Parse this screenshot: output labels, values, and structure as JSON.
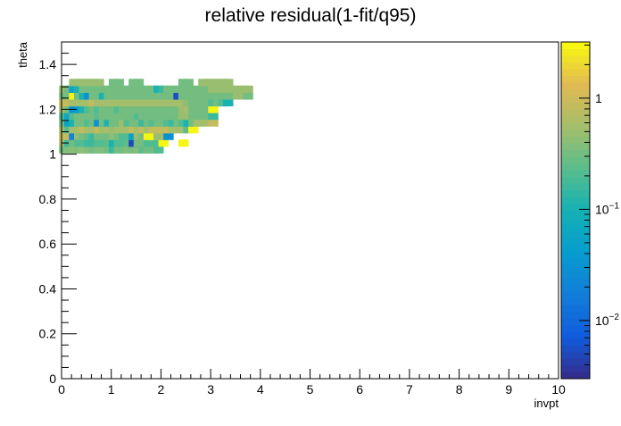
{
  "chart_data": {
    "type": "heatmap",
    "title": "relative residual(1-fit/q95)",
    "xlabel": "invpt",
    "ylabel": "theta",
    "xlim": [
      0,
      10
    ],
    "ylim": [
      0,
      1.5
    ],
    "x_ticks": [
      "0",
      "1",
      "2",
      "3",
      "4",
      "5",
      "6",
      "7",
      "8",
      "9",
      "10"
    ],
    "y_ticks": [
      "0",
      "0.2",
      "0.4",
      "0.6",
      "0.8",
      "1",
      "1.2",
      "1.4"
    ],
    "z_scale": "log",
    "zlim": [
      0.003,
      3.2
    ],
    "colorbar_ticks": [
      {
        "value": 1,
        "label": "1"
      },
      {
        "value": 0.1,
        "label": "10",
        "exp": "−1"
      },
      {
        "value": 0.01,
        "label": "10",
        "exp": "−2"
      }
    ],
    "bin_width_x": 0.2,
    "bin_height_y": 0.0314,
    "bins_x0": 0,
    "bins_y0": 0.9895,
    "grid": [
      "00000000000000000000000000000000000000000000000000",
      "00060606060600000000000000000000000000000000000000",
      "62323334225540000000000000000000000000000000000000",
      "63222222112322440000000000000000000000000000000000",
      "66633233333333554000000000000000000000000000000000",
      "63522343355334464000000000000000000000000000000000",
      "75231114434453533000000000000000000000000000000000",
      "55223224444422456000000000000000000000000000000000",
      "54744445444353540000000000000000000000000000000000",
      "00000000000000000000000000000000000000000000000000"
    ],
    "values_note": "",
    "cells": [
      [
        0.05,
        1.02,
        0.3
      ],
      [
        0.15,
        1.02,
        0.35
      ],
      [
        0.25,
        1.02,
        0.4
      ],
      [
        0.35,
        1.02,
        0.35
      ],
      [
        0.45,
        1.02,
        0.4
      ],
      [
        0.55,
        1.02,
        0.35
      ],
      [
        0.65,
        1.02,
        0.3
      ],
      [
        0.75,
        1.02,
        0.35
      ],
      [
        0.85,
        1.02,
        0.35
      ],
      [
        0.95,
        1.02,
        0.3
      ],
      [
        1.05,
        1.02,
        0.15
      ],
      [
        1.15,
        1.02,
        0.3
      ],
      [
        1.25,
        1.02,
        0.3
      ],
      [
        1.35,
        1.02,
        0.35
      ],
      [
        1.45,
        1.02,
        0.3
      ],
      [
        1.55,
        1.02,
        0.35
      ],
      [
        1.65,
        1.02,
        0.25
      ],
      [
        1.75,
        1.02,
        0.3
      ],
      [
        1.85,
        1.02,
        0.3
      ],
      [
        1.95,
        1.02,
        0.2
      ],
      [
        0.05,
        1.05,
        0.6
      ],
      [
        0.15,
        1.05,
        0.15
      ],
      [
        0.25,
        1.05,
        0.3
      ],
      [
        0.35,
        1.05,
        0.2
      ],
      [
        0.45,
        1.05,
        0.2
      ],
      [
        0.55,
        1.05,
        0.15
      ],
      [
        0.65,
        1.05,
        0.15
      ],
      [
        0.75,
        1.05,
        0.2
      ],
      [
        0.85,
        1.05,
        0.2
      ],
      [
        0.95,
        1.05,
        0.25
      ],
      [
        1.05,
        1.05,
        0.1
      ],
      [
        1.15,
        1.05,
        0.2
      ],
      [
        1.25,
        1.05,
        0.2
      ],
      [
        1.35,
        1.05,
        0.25
      ],
      [
        1.45,
        1.05,
        0.005
      ],
      [
        1.55,
        1.05,
        0.3
      ],
      [
        1.65,
        1.05,
        0.3
      ],
      [
        1.75,
        1.05,
        0.2
      ],
      [
        1.85,
        1.05,
        0.2
      ],
      [
        2.05,
        1.05,
        3.0
      ],
      [
        2.45,
        1.05,
        3.0
      ],
      [
        0.05,
        1.08,
        0.8
      ],
      [
        0.15,
        1.08,
        0.8
      ],
      [
        0.25,
        1.08,
        0.02
      ],
      [
        0.35,
        1.08,
        0.4
      ],
      [
        0.45,
        1.08,
        0.3
      ],
      [
        0.55,
        1.08,
        0.25
      ],
      [
        0.65,
        1.08,
        0.15
      ],
      [
        0.75,
        1.08,
        0.3
      ],
      [
        0.85,
        1.08,
        0.3
      ],
      [
        0.95,
        1.08,
        0.3
      ],
      [
        1.05,
        1.08,
        0.4
      ],
      [
        1.15,
        1.08,
        0.3
      ],
      [
        1.25,
        1.08,
        0.2
      ],
      [
        1.35,
        1.08,
        0.2
      ],
      [
        1.45,
        1.08,
        0.05
      ],
      [
        1.55,
        1.08,
        0.5
      ],
      [
        1.65,
        1.08,
        0.3
      ],
      [
        1.75,
        1.08,
        3.0
      ],
      [
        1.85,
        1.08,
        3.0
      ],
      [
        1.95,
        1.08,
        0.5
      ],
      [
        2.05,
        1.08,
        0.5
      ],
      [
        2.15,
        1.08,
        0.03
      ],
      [
        0.05,
        1.11,
        0.6
      ],
      [
        0.15,
        1.11,
        0.2
      ],
      [
        0.25,
        1.11,
        0.6
      ],
      [
        0.35,
        1.11,
        0.6
      ],
      [
        0.45,
        1.11,
        0.8
      ],
      [
        0.55,
        1.11,
        0.6
      ],
      [
        0.65,
        1.11,
        0.6
      ],
      [
        0.75,
        1.11,
        0.8
      ],
      [
        0.85,
        1.11,
        0.6
      ],
      [
        0.95,
        1.11,
        0.6
      ],
      [
        1.05,
        1.11,
        0.5
      ],
      [
        1.15,
        1.11,
        0.6
      ],
      [
        1.25,
        1.11,
        0.6
      ],
      [
        1.35,
        1.11,
        0.6
      ],
      [
        1.45,
        1.11,
        0.8
      ],
      [
        1.55,
        1.11,
        0.6
      ],
      [
        1.65,
        1.11,
        0.8
      ],
      [
        1.75,
        1.11,
        0.6
      ],
      [
        1.85,
        1.11,
        0.8
      ],
      [
        1.95,
        1.11,
        0.8
      ],
      [
        2.05,
        1.11,
        0.8
      ],
      [
        2.15,
        1.11,
        0.8
      ],
      [
        2.25,
        1.11,
        0.6
      ],
      [
        2.35,
        1.11,
        0.6
      ],
      [
        2.45,
        1.11,
        0.6
      ],
      [
        2.55,
        1.11,
        0.25
      ],
      [
        2.65,
        1.11,
        3.0
      ],
      [
        0.05,
        1.14,
        0.3
      ],
      [
        0.15,
        1.14,
        0.05
      ],
      [
        0.25,
        1.14,
        0.1
      ],
      [
        0.35,
        1.14,
        0.3
      ],
      [
        0.45,
        1.14,
        0.3
      ],
      [
        0.55,
        1.14,
        0.2
      ],
      [
        0.65,
        1.14,
        0.3
      ],
      [
        0.75,
        1.14,
        0.03
      ],
      [
        0.85,
        1.14,
        0.3
      ],
      [
        0.95,
        1.14,
        0.1
      ],
      [
        1.05,
        1.14,
        0.3
      ],
      [
        1.15,
        1.14,
        0.3
      ],
      [
        1.25,
        1.14,
        0.5
      ],
      [
        1.35,
        1.14,
        0.2
      ],
      [
        1.45,
        1.14,
        0.3
      ],
      [
        1.55,
        1.14,
        0.3
      ],
      [
        1.65,
        1.14,
        0.15
      ],
      [
        1.75,
        1.14,
        0.3
      ],
      [
        1.85,
        1.14,
        0.2
      ],
      [
        1.95,
        1.14,
        0.3
      ],
      [
        2.05,
        1.14,
        0.3
      ],
      [
        2.15,
        1.14,
        0.2
      ],
      [
        2.25,
        1.14,
        0.15
      ],
      [
        2.35,
        1.14,
        0.3
      ],
      [
        2.45,
        1.14,
        0.2
      ],
      [
        2.55,
        1.14,
        0.1
      ],
      [
        2.65,
        1.14,
        0.3
      ],
      [
        2.75,
        1.14,
        0.6
      ],
      [
        2.85,
        1.14,
        0.6
      ],
      [
        3.05,
        1.14,
        0.8
      ],
      [
        0.05,
        1.17,
        0.2
      ],
      [
        0.15,
        1.17,
        0.06
      ],
      [
        0.25,
        1.17,
        0.2
      ],
      [
        0.35,
        1.17,
        0.3
      ],
      [
        0.45,
        1.17,
        0.3
      ],
      [
        0.55,
        1.17,
        0.3
      ],
      [
        0.65,
        1.17,
        0.3
      ],
      [
        0.75,
        1.17,
        0.25
      ],
      [
        0.85,
        1.17,
        0.3
      ],
      [
        0.95,
        1.17,
        0.3
      ],
      [
        1.05,
        1.17,
        0.3
      ],
      [
        1.15,
        1.17,
        0.3
      ],
      [
        1.25,
        1.17,
        0.3
      ],
      [
        1.35,
        1.17,
        0.3
      ],
      [
        1.45,
        1.17,
        0.3
      ],
      [
        1.55,
        1.17,
        0.2
      ],
      [
        1.65,
        1.17,
        0.3
      ],
      [
        1.75,
        1.17,
        0.3
      ],
      [
        1.85,
        1.17,
        0.3
      ],
      [
        1.95,
        1.17,
        0.3
      ],
      [
        2.05,
        1.17,
        0.3
      ],
      [
        2.15,
        1.17,
        0.3
      ],
      [
        2.25,
        1.17,
        0.3
      ],
      [
        2.35,
        1.17,
        0.3
      ],
      [
        2.45,
        1.17,
        0.5
      ],
      [
        2.55,
        1.17,
        0.5
      ],
      [
        2.65,
        1.17,
        0.3
      ],
      [
        2.75,
        1.17,
        0.3
      ],
      [
        2.85,
        1.17,
        0.3
      ],
      [
        3.05,
        1.17,
        0.15
      ],
      [
        0.05,
        1.2,
        0.6
      ],
      [
        0.15,
        1.2,
        0.3
      ],
      [
        0.25,
        1.2,
        0.03
      ],
      [
        0.35,
        1.2,
        0.04
      ],
      [
        0.45,
        1.2,
        0.1
      ],
      [
        0.55,
        1.2,
        0.2
      ],
      [
        0.65,
        1.2,
        0.3
      ],
      [
        0.75,
        1.2,
        0.2
      ],
      [
        0.85,
        1.2,
        0.3
      ],
      [
        0.95,
        1.2,
        0.3
      ],
      [
        1.05,
        1.2,
        0.3
      ],
      [
        1.15,
        1.2,
        0.2
      ],
      [
        1.25,
        1.2,
        0.3
      ],
      [
        1.35,
        1.2,
        0.3
      ],
      [
        1.45,
        1.2,
        0.3
      ],
      [
        1.55,
        1.2,
        0.3
      ],
      [
        1.65,
        1.2,
        0.3
      ],
      [
        1.75,
        1.2,
        0.3
      ],
      [
        1.85,
        1.2,
        0.3
      ],
      [
        1.95,
        1.2,
        0.3
      ],
      [
        2.05,
        1.2,
        0.3
      ],
      [
        2.15,
        1.2,
        0.3
      ],
      [
        2.25,
        1.2,
        0.3
      ],
      [
        2.35,
        1.2,
        0.3
      ],
      [
        2.45,
        1.2,
        0.5
      ],
      [
        2.55,
        1.2,
        0.6
      ],
      [
        2.65,
        1.2,
        0.3
      ],
      [
        2.75,
        1.2,
        0.3
      ],
      [
        2.85,
        1.2,
        0.3
      ],
      [
        2.95,
        1.2,
        0.3
      ],
      [
        3.05,
        1.2,
        3.0
      ],
      [
        0.05,
        1.23,
        0.8
      ],
      [
        0.15,
        1.23,
        0.8
      ],
      [
        0.25,
        1.23,
        0.6
      ],
      [
        0.35,
        1.23,
        0.6
      ],
      [
        0.45,
        1.23,
        0.6
      ],
      [
        0.55,
        1.23,
        0.6
      ],
      [
        0.65,
        1.23,
        0.8
      ],
      [
        0.75,
        1.23,
        0.6
      ],
      [
        0.85,
        1.23,
        0.6
      ],
      [
        0.95,
        1.23,
        0.6
      ],
      [
        1.05,
        1.23,
        0.6
      ],
      [
        1.15,
        1.23,
        0.6
      ],
      [
        1.25,
        1.23,
        0.6
      ],
      [
        1.35,
        1.23,
        0.6
      ],
      [
        1.45,
        1.23,
        0.6
      ],
      [
        1.55,
        1.23,
        0.6
      ],
      [
        1.65,
        1.23,
        0.6
      ],
      [
        1.75,
        1.23,
        0.6
      ],
      [
        1.85,
        1.23,
        0.6
      ],
      [
        1.95,
        1.23,
        0.6
      ],
      [
        2.05,
        1.23,
        0.6
      ],
      [
        2.15,
        1.23,
        0.6
      ],
      [
        2.25,
        1.23,
        0.6
      ],
      [
        2.35,
        1.23,
        0.6
      ],
      [
        2.45,
        1.23,
        0.6
      ],
      [
        2.55,
        1.23,
        0.4
      ],
      [
        2.65,
        1.23,
        0.3
      ],
      [
        2.75,
        1.23,
        0.3
      ],
      [
        2.85,
        1.23,
        0.3
      ],
      [
        2.95,
        1.23,
        0.3
      ],
      [
        3.05,
        1.23,
        0.2
      ],
      [
        3.15,
        1.23,
        0.3
      ],
      [
        3.25,
        1.23,
        0.2
      ],
      [
        3.35,
        1.23,
        0.1
      ],
      [
        0.05,
        1.26,
        0.3
      ],
      [
        0.15,
        1.26,
        0.3
      ],
      [
        0.25,
        1.26,
        3.0
      ],
      [
        0.35,
        1.26,
        0.3
      ],
      [
        0.45,
        1.26,
        0.1
      ],
      [
        0.55,
        1.26,
        0.03
      ],
      [
        0.65,
        1.26,
        0.3
      ],
      [
        0.75,
        1.26,
        0.3
      ],
      [
        0.85,
        1.26,
        0.1
      ],
      [
        0.95,
        1.26,
        0.3
      ],
      [
        1.05,
        1.26,
        0.3
      ],
      [
        1.15,
        1.26,
        0.3
      ],
      [
        1.25,
        1.26,
        0.3
      ],
      [
        1.35,
        1.26,
        0.3
      ],
      [
        1.45,
        1.26,
        0.3
      ],
      [
        1.55,
        1.26,
        0.3
      ],
      [
        1.65,
        1.26,
        0.3
      ],
      [
        1.75,
        1.26,
        0.3
      ],
      [
        1.85,
        1.26,
        0.3
      ],
      [
        1.95,
        1.26,
        0.3
      ],
      [
        2.05,
        1.26,
        0.3
      ],
      [
        2.15,
        1.26,
        0.3
      ],
      [
        2.25,
        1.26,
        0.3
      ],
      [
        2.35,
        1.26,
        0.006
      ],
      [
        2.45,
        1.26,
        0.3
      ],
      [
        2.55,
        1.26,
        0.3
      ],
      [
        2.65,
        1.26,
        0.3
      ],
      [
        2.75,
        1.26,
        0.3
      ],
      [
        2.85,
        1.26,
        0.3
      ],
      [
        2.95,
        1.26,
        0.3
      ],
      [
        3.05,
        1.26,
        0.3
      ],
      [
        3.15,
        1.26,
        0.3
      ],
      [
        3.25,
        1.26,
        0.3
      ],
      [
        3.35,
        1.26,
        0.3
      ],
      [
        3.55,
        1.26,
        0.5
      ],
      [
        3.75,
        1.26,
        0.3
      ],
      [
        0.05,
        1.29,
        0.5
      ],
      [
        0.15,
        1.29,
        0.3
      ],
      [
        0.25,
        1.29,
        0.05
      ],
      [
        0.35,
        1.29,
        0.1
      ],
      [
        0.45,
        1.29,
        0.3
      ],
      [
        0.55,
        1.29,
        0.3
      ],
      [
        0.65,
        1.29,
        0.3
      ],
      [
        0.75,
        1.29,
        0.3
      ],
      [
        0.85,
        1.29,
        0.3
      ],
      [
        0.95,
        1.29,
        0.3
      ],
      [
        1.05,
        1.29,
        0.3
      ],
      [
        1.15,
        1.29,
        0.3
      ],
      [
        1.25,
        1.29,
        0.3
      ],
      [
        1.35,
        1.29,
        0.3
      ],
      [
        1.45,
        1.29,
        0.3
      ],
      [
        1.55,
        1.29,
        0.3
      ],
      [
        1.65,
        1.29,
        0.3
      ],
      [
        1.75,
        1.29,
        0.3
      ],
      [
        1.85,
        1.29,
        0.3
      ],
      [
        1.95,
        1.29,
        0.1
      ],
      [
        2.05,
        1.29,
        0.15
      ],
      [
        2.15,
        1.29,
        0.3
      ],
      [
        2.25,
        1.29,
        0.3
      ],
      [
        2.35,
        1.29,
        0.3
      ],
      [
        2.45,
        1.29,
        0.3
      ],
      [
        2.55,
        1.29,
        0.3
      ],
      [
        2.65,
        1.29,
        0.3
      ],
      [
        2.75,
        1.29,
        0.3
      ],
      [
        2.85,
        1.29,
        0.3
      ],
      [
        2.95,
        1.29,
        0.3
      ],
      [
        3.05,
        1.29,
        0.5
      ],
      [
        3.15,
        1.29,
        0.5
      ],
      [
        3.25,
        1.29,
        0.5
      ],
      [
        3.35,
        1.29,
        0.5
      ],
      [
        3.45,
        1.29,
        0.5
      ],
      [
        3.55,
        1.29,
        0.5
      ],
      [
        3.65,
        1.29,
        0.5
      ],
      [
        3.75,
        1.29,
        0.5
      ],
      [
        0.25,
        1.32,
        0.5
      ],
      [
        0.35,
        1.32,
        0.5
      ],
      [
        0.45,
        1.32,
        0.5
      ],
      [
        0.55,
        1.32,
        0.5
      ],
      [
        0.65,
        1.32,
        0.5
      ],
      [
        0.75,
        1.32,
        0.5
      ],
      [
        1.05,
        1.32,
        0.3
      ],
      [
        1.15,
        1.32,
        0.3
      ],
      [
        1.45,
        1.32,
        0.3
      ],
      [
        1.55,
        1.32,
        0.3
      ],
      [
        2.45,
        1.32,
        0.3
      ],
      [
        2.55,
        1.32,
        0.3
      ],
      [
        2.85,
        1.32,
        0.5
      ],
      [
        2.95,
        1.32,
        0.5
      ],
      [
        3.05,
        1.32,
        0.5
      ],
      [
        3.15,
        1.32,
        0.5
      ],
      [
        3.25,
        1.32,
        0.5
      ],
      [
        3.35,
        1.32,
        0.5
      ]
    ]
  }
}
